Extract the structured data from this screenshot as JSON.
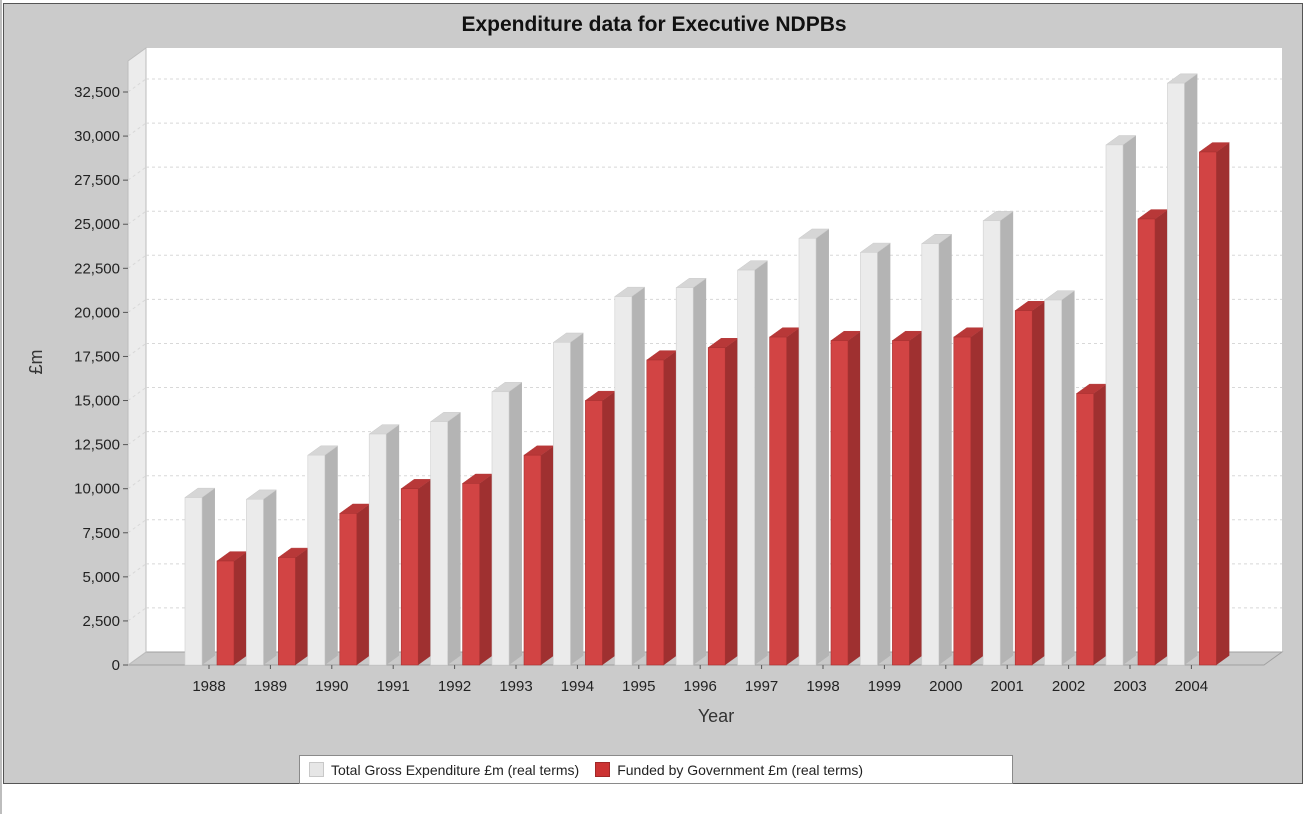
{
  "chart_data": {
    "type": "bar",
    "title": "Expenditure data for Executive NDPBs",
    "xlabel": "Year",
    "ylabel": "£m",
    "ylim": [
      0,
      32500
    ],
    "y_ticks": [
      "0",
      "2,500",
      "5,000",
      "7,500",
      "10,000",
      "12,500",
      "15,000",
      "17,500",
      "20,000",
      "22,500",
      "25,000",
      "27,500",
      "30,000",
      "32,500"
    ],
    "grid": true,
    "legend_position": "bottom",
    "categories": [
      "1988",
      "1989",
      "1990",
      "1991",
      "1992",
      "1993",
      "1994",
      "1995",
      "1996",
      "1997",
      "1998",
      "1999",
      "2000",
      "2001",
      "2002",
      "2003",
      "2004"
    ],
    "series": [
      {
        "name": "Total Gross Expenditure £m (real terms)",
        "color": "#e6e6e6",
        "values": [
          9500,
          9400,
          11900,
          13100,
          13800,
          15500,
          18300,
          20900,
          21400,
          22400,
          24200,
          23400,
          23900,
          25200,
          20700,
          29500,
          33000
        ]
      },
      {
        "name": "Funded by Government £m (real terms)",
        "color": "#cc3333",
        "values": [
          5900,
          6100,
          8600,
          10000,
          10300,
          11900,
          15000,
          17300,
          18000,
          18600,
          18400,
          18400,
          18600,
          20100,
          15400,
          25300,
          29100
        ]
      }
    ]
  }
}
